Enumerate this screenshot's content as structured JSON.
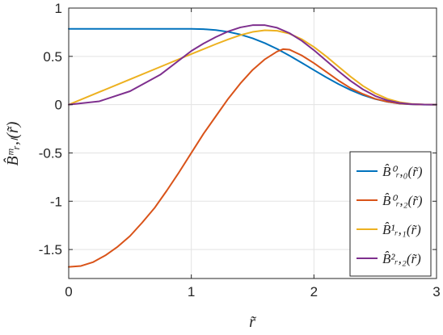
{
  "chart_data": {
    "type": "line",
    "xlabel": "r̃",
    "ylabel": "B̂ᵐᵣ,ₗ(r̃)",
    "xlim": [
      0,
      3
    ],
    "ylim": [
      -1.8,
      1
    ],
    "x_ticks": [
      "0",
      "1",
      "2",
      "3"
    ],
    "y_ticks": [
      "1",
      "0.5",
      "0",
      "-0.5",
      "-1",
      "-1.5"
    ],
    "grid": true,
    "legend_position": "bottom-right",
    "series": [
      {
        "name": "B̂⁰ᵣ,₀(r̃)",
        "color": "#0072BD",
        "x": [
          0,
          0.25,
          0.5,
          0.75,
          1.0,
          1.1,
          1.2,
          1.3,
          1.4,
          1.5,
          1.6,
          1.7,
          1.8,
          1.9,
          2.0,
          2.1,
          2.2,
          2.3,
          2.4,
          2.5,
          2.6,
          2.7,
          2.8,
          2.9,
          3.0
        ],
        "values": [
          0.785,
          0.785,
          0.785,
          0.785,
          0.785,
          0.782,
          0.772,
          0.754,
          0.726,
          0.687,
          0.637,
          0.577,
          0.508,
          0.434,
          0.358,
          0.283,
          0.213,
          0.151,
          0.099,
          0.058,
          0.029,
          0.011,
          0.003,
          0.0005,
          0
        ]
      },
      {
        "name": "B̂⁰ᵣ,₂(r̃)",
        "color": "#D95319",
        "x": [
          0,
          0.1,
          0.2,
          0.3,
          0.4,
          0.5,
          0.6,
          0.7,
          0.8,
          0.9,
          1.0,
          1.1,
          1.2,
          1.3,
          1.4,
          1.5,
          1.6,
          1.7,
          1.75,
          1.8,
          1.9,
          2.0,
          2.1,
          2.2,
          2.3,
          2.4,
          2.5,
          2.6,
          2.7,
          2.8,
          2.9,
          3.0
        ],
        "values": [
          -1.68,
          -1.67,
          -1.63,
          -1.56,
          -1.47,
          -1.36,
          -1.22,
          -1.07,
          -0.89,
          -0.7,
          -0.5,
          -0.3,
          -0.12,
          0.06,
          0.22,
          0.36,
          0.47,
          0.55,
          0.575,
          0.57,
          0.51,
          0.43,
          0.34,
          0.25,
          0.17,
          0.11,
          0.06,
          0.03,
          0.012,
          0.004,
          0.001,
          0
        ]
      },
      {
        "name": "B̂¹ᵣ,₁(r̃)",
        "color": "#EDB120",
        "x": [
          0,
          0.25,
          0.5,
          0.75,
          1.0,
          1.1,
          1.2,
          1.3,
          1.4,
          1.5,
          1.6,
          1.7,
          1.8,
          1.9,
          2.0,
          2.1,
          2.2,
          2.3,
          2.4,
          2.5,
          2.6,
          2.7,
          2.8,
          2.9,
          3.0
        ],
        "values": [
          0,
          0.131,
          0.262,
          0.393,
          0.524,
          0.575,
          0.627,
          0.676,
          0.72,
          0.753,
          0.77,
          0.765,
          0.735,
          0.678,
          0.597,
          0.5,
          0.394,
          0.289,
          0.194,
          0.117,
          0.06,
          0.025,
          0.007,
          0.001,
          0
        ]
      },
      {
        "name": "B̂²ᵣ,₂(r̃)",
        "color": "#7E2F8E",
        "x": [
          0,
          0.25,
          0.5,
          0.75,
          1.0,
          1.1,
          1.2,
          1.3,
          1.4,
          1.5,
          1.6,
          1.7,
          1.8,
          1.9,
          2.0,
          2.1,
          2.2,
          2.3,
          2.4,
          2.5,
          2.6,
          2.7,
          2.8,
          2.9,
          3.0
        ],
        "values": [
          0,
          0.035,
          0.139,
          0.313,
          0.556,
          0.633,
          0.7,
          0.758,
          0.8,
          0.823,
          0.823,
          0.796,
          0.741,
          0.662,
          0.564,
          0.456,
          0.347,
          0.245,
          0.158,
          0.09,
          0.044,
          0.017,
          0.005,
          0.0007,
          0
        ]
      }
    ]
  }
}
